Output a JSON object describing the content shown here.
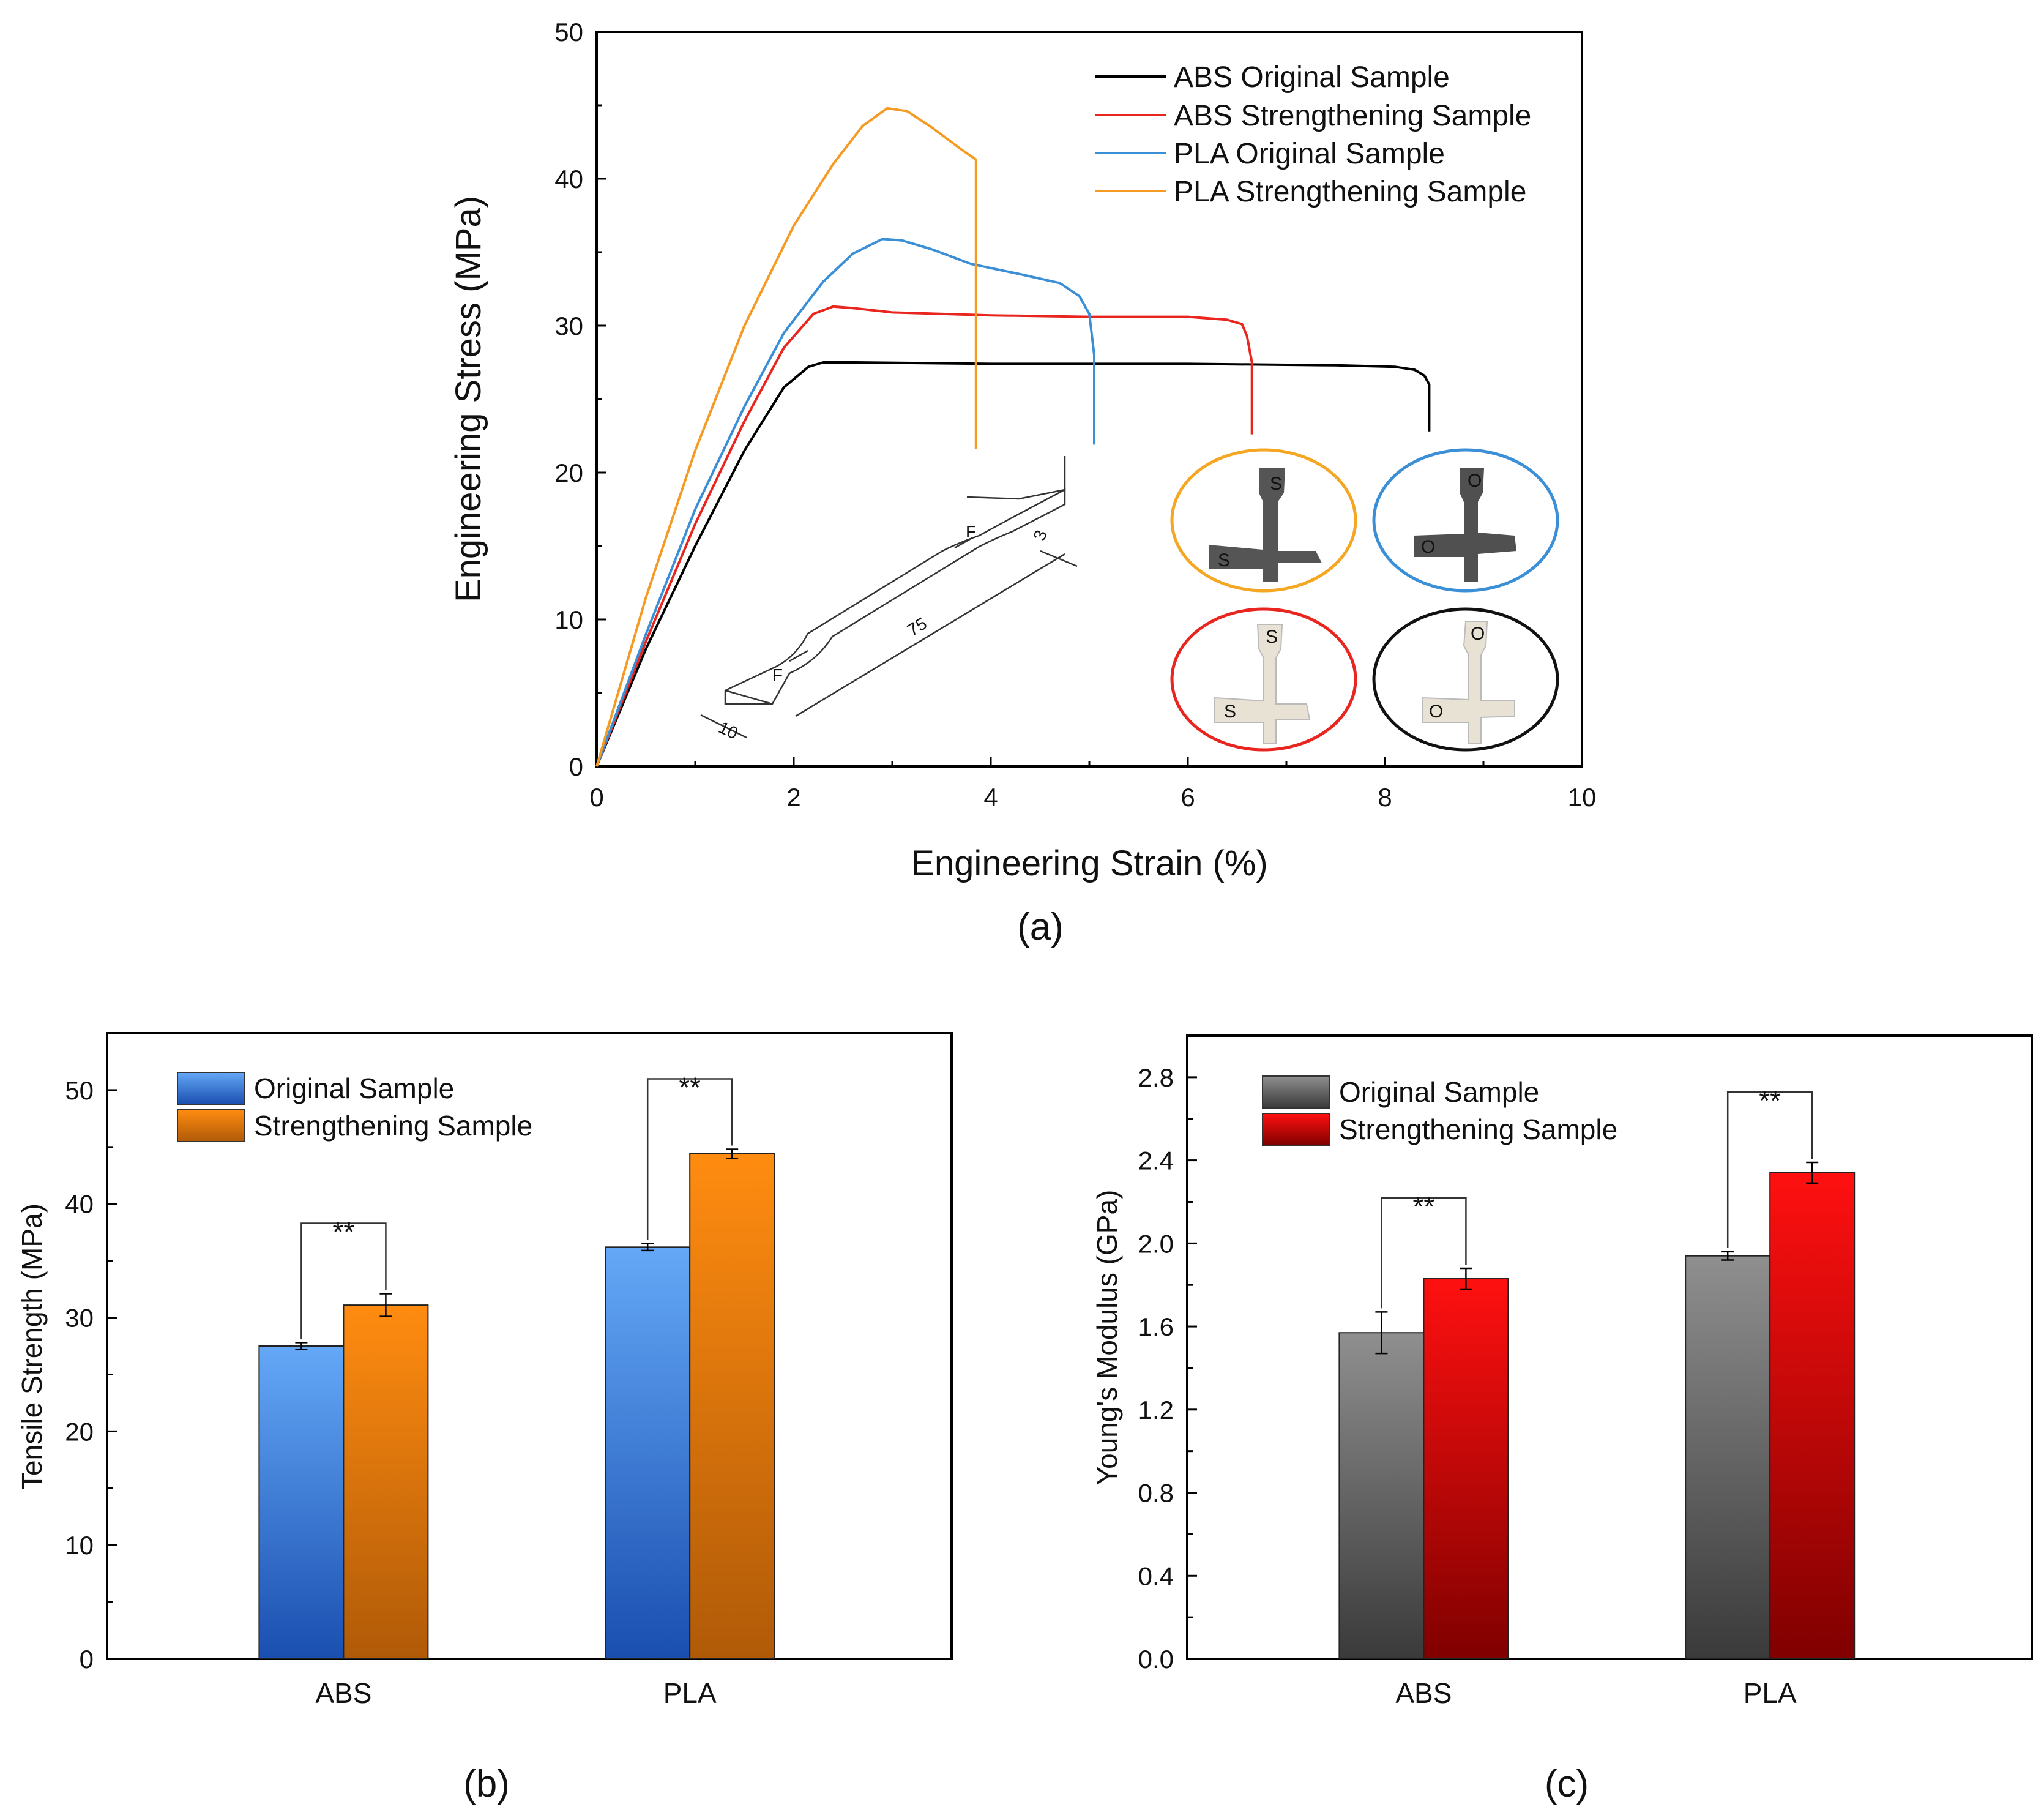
{
  "chart_data": [
    {
      "id": "a",
      "type": "line",
      "caption": "(a)",
      "xlabel": "Engineering Strain (%)",
      "ylabel": "Engineering Stress (MPa)",
      "xlim": [
        0,
        10
      ],
      "ylim": [
        0,
        50
      ],
      "xticks": [
        "0",
        "2",
        "4",
        "6",
        "8",
        "10"
      ],
      "yticks": [
        "0",
        "10",
        "20",
        "30",
        "40",
        "50"
      ],
      "legend_position": "top-right",
      "series": [
        {
          "name": "ABS Original Sample",
          "color": "#000000",
          "x": [
            0,
            0.5,
            1,
            1.5,
            1.9,
            2.15,
            2.3,
            2.6,
            4,
            6,
            7.5,
            8.1,
            8.3,
            8.4,
            8.45,
            8.45
          ],
          "y": [
            0,
            8,
            15,
            21.5,
            25.8,
            27.2,
            27.5,
            27.5,
            27.4,
            27.4,
            27.3,
            27.2,
            27.0,
            26.6,
            26.0,
            22.8
          ]
        },
        {
          "name": "ABS Strengthening Sample",
          "color": "#e8261f",
          "x": [
            0,
            0.5,
            1,
            1.5,
            1.9,
            2.2,
            2.4,
            2.6,
            3,
            4,
            5,
            6,
            6.4,
            6.55,
            6.6,
            6.65,
            6.65
          ],
          "y": [
            0,
            8.5,
            16.5,
            23.5,
            28.5,
            30.8,
            31.3,
            31.2,
            30.9,
            30.7,
            30.6,
            30.6,
            30.4,
            30.1,
            29.3,
            27.5,
            22.6
          ]
        },
        {
          "name": "PLA Original Sample",
          "color": "#3b8fd6",
          "x": [
            0,
            0.5,
            1,
            1.5,
            1.9,
            2.3,
            2.6,
            2.9,
            3.1,
            3.4,
            3.8,
            4.3,
            4.7,
            4.9,
            5.0,
            5.05,
            5.05
          ],
          "y": [
            0,
            9,
            17.5,
            24.5,
            29.5,
            33,
            34.9,
            35.9,
            35.8,
            35.2,
            34.2,
            33.5,
            32.9,
            32.0,
            30.8,
            28,
            21.9
          ]
        },
        {
          "name": "PLA Strengthening Sample",
          "color": "#f59a23",
          "x": [
            0,
            0.5,
            1,
            1.5,
            2,
            2.4,
            2.7,
            2.95,
            3.15,
            3.4,
            3.7,
            3.85,
            3.85
          ],
          "y": [
            0,
            11.5,
            21.5,
            30,
            36.8,
            41,
            43.6,
            44.8,
            44.6,
            43.5,
            42,
            41.3,
            21.6
          ]
        }
      ],
      "inset_diagram": {
        "labels": [
          "F",
          "F",
          "75",
          "10",
          "3"
        ]
      },
      "inset_photo_labels": [
        "S",
        "O",
        "S",
        "O"
      ]
    },
    {
      "id": "b",
      "type": "bar",
      "caption": "(b)",
      "categories": [
        "ABS",
        "PLA"
      ],
      "ylabel": "Tensile Strength (MPa)",
      "xlabel": "",
      "ylim": [
        0,
        55
      ],
      "yticks": [
        "0",
        "10",
        "20",
        "30",
        "40",
        "50"
      ],
      "legend_position": "top-left",
      "significance": "**",
      "series": [
        {
          "name": "Original Sample",
          "color_top": "#64a8f7",
          "color_bottom": "#1a4fb0",
          "values": [
            27.5,
            36.2
          ],
          "errors": [
            0.3,
            0.3
          ]
        },
        {
          "name": "Strengthening Sample",
          "color_top": "#ff8c10",
          "color_bottom": "#b05a08",
          "values": [
            31.1,
            44.4
          ],
          "errors": [
            1.0,
            0.4
          ]
        }
      ]
    },
    {
      "id": "c",
      "type": "bar",
      "caption": "(c)",
      "categories": [
        "ABS",
        "PLA"
      ],
      "ylabel": "Young's Modulus (GPa)",
      "xlabel": "",
      "ylim": [
        0,
        3.0
      ],
      "yticks": [
        "0.0",
        "0.4",
        "0.8",
        "1.2",
        "1.6",
        "2.0",
        "2.4",
        "2.8"
      ],
      "legend_position": "top-left",
      "significance": "**",
      "series": [
        {
          "name": "Original Sample",
          "color_top": "#8f8f8f",
          "color_bottom": "#3a3a3a",
          "values": [
            1.57,
            1.94
          ],
          "errors": [
            0.1,
            0.02
          ]
        },
        {
          "name": "Strengthening Sample",
          "color_top": "#ff1010",
          "color_bottom": "#800000",
          "values": [
            1.83,
            2.34
          ],
          "errors": [
            0.05,
            0.05
          ]
        }
      ]
    }
  ]
}
